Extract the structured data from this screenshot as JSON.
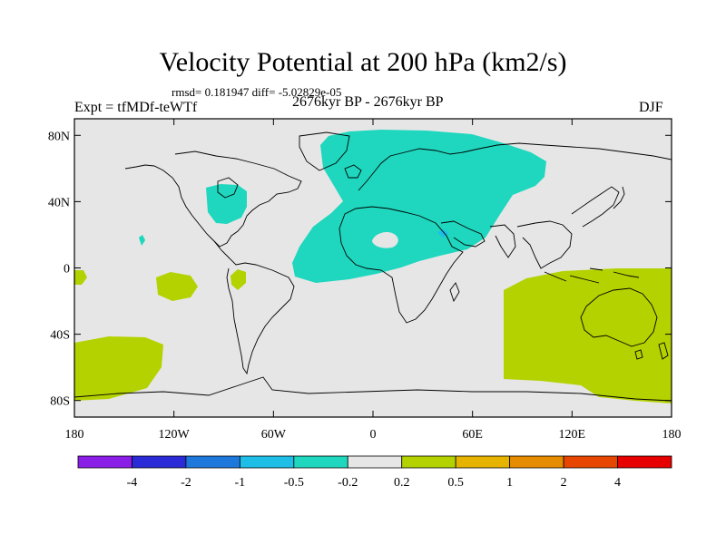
{
  "title": "Velocity Potential at 200 hPa (km2/s)",
  "stats": "rmsd= 0.181947 diff= -5.02829e-05",
  "expt": "Expt = tfMDf-teWTf",
  "period": "2676kyr BP - 2676kyr BP",
  "season": "DJF",
  "map": {
    "lon_range": [
      -180,
      180
    ],
    "lat_range": [
      -90,
      90
    ],
    "background_color": "#e6e6e6",
    "lat_ticks": [
      {
        "value": 80,
        "label": "80N"
      },
      {
        "value": 40,
        "label": "40N"
      },
      {
        "value": 0,
        "label": "0"
      },
      {
        "value": -40,
        "label": "40S"
      },
      {
        "value": -80,
        "label": "80S"
      }
    ],
    "lon_ticks": [
      {
        "value": -180,
        "label": "180"
      },
      {
        "value": -120,
        "label": "120W"
      },
      {
        "value": -60,
        "label": "60W"
      },
      {
        "value": 0,
        "label": "0"
      },
      {
        "value": 60,
        "label": "60E"
      },
      {
        "value": 120,
        "label": "120E"
      },
      {
        "value": 180,
        "label": "180"
      }
    ]
  },
  "colorbar": {
    "colors": [
      "#8a1ee6",
      "#2a2ad6",
      "#1e78dc",
      "#1ebee6",
      "#1ed7be",
      "#e6e6e6",
      "#b4d200",
      "#e6b400",
      "#e68c00",
      "#e64600",
      "#e60000"
    ],
    "labels": [
      "-4",
      "-2",
      "-1",
      "-0.5",
      "-0.2",
      "0.2",
      "0.5",
      "1",
      "2",
      "4"
    ]
  },
  "legend_colors": {
    "negative_fill": "#1ed7be",
    "positive_fill": "#b4d200",
    "small_negative": "#1ebee6"
  }
}
